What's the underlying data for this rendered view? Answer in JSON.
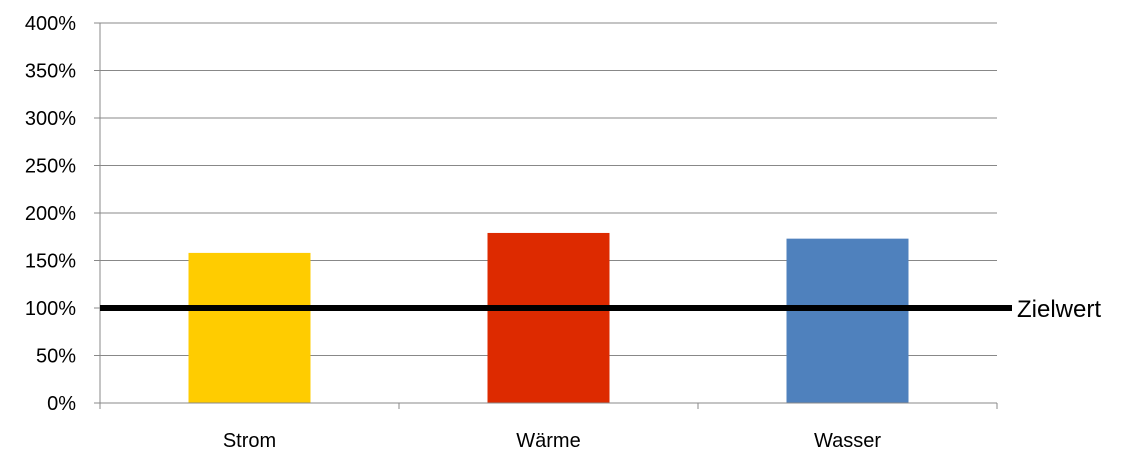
{
  "chart_data": {
    "type": "bar",
    "categories": [
      "Strom",
      "Wärme",
      "Wasser"
    ],
    "values": [
      158,
      179,
      173
    ],
    "colors": [
      "#ffcc00",
      "#dd2a00",
      "#4f81bd"
    ],
    "ylim": [
      0,
      400
    ],
    "yticks": [
      0,
      50,
      100,
      150,
      200,
      250,
      300,
      350,
      400
    ],
    "ytick_labels": [
      "0%",
      "50%",
      "100%",
      "150%",
      "200%",
      "250%",
      "300%",
      "350%",
      "400%"
    ],
    "grid": true,
    "target": {
      "value": 100,
      "label": "Zielwert",
      "color": "#000000"
    },
    "gridline_color": "#888888"
  }
}
